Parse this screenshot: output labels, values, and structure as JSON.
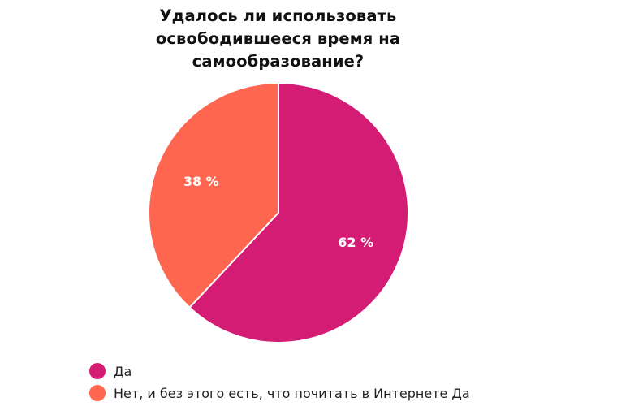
{
  "chart_data": {
    "type": "pie",
    "title": "Удалось ли использовать\nосвободившееся время на\nсамообразование?",
    "series": [
      {
        "name": "Да",
        "value": 62,
        "label": "62 %",
        "color": "#D41C75"
      },
      {
        "name": "Нет, и без этого есть, что почитать в Интернете Да",
        "value": 38,
        "label": "38 %",
        "color": "#FF6650"
      }
    ],
    "start_angle": "12 o'clock",
    "direction": "clockwise",
    "legend_position": "bottom-left"
  }
}
